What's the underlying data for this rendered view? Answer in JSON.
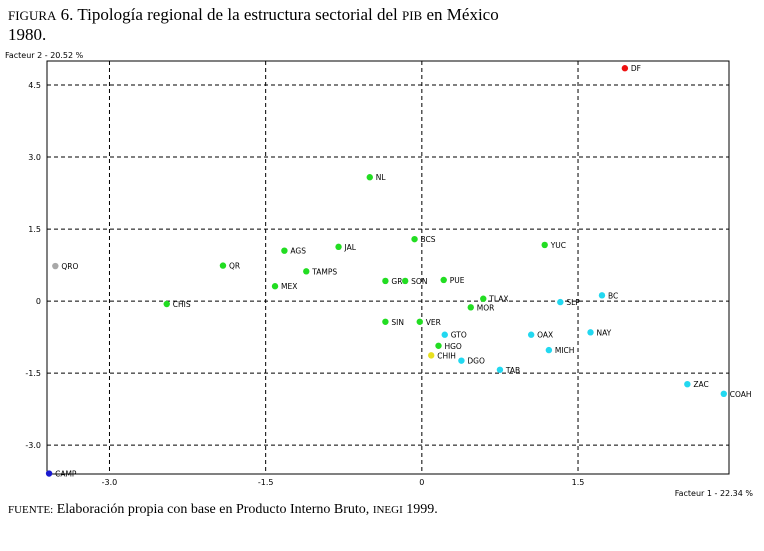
{
  "title": {
    "figure_label": "FIGURA",
    "figure_number": "6.",
    "text_part1": "Tipología regional de la estructura sectorial del",
    "acronym": "PIB",
    "text_part2": "en México",
    "line2": "1980."
  },
  "source": {
    "label": "FUENTE:",
    "text": "Elaboración propia con base en Producto Interno Bruto,",
    "org": "INEGI",
    "year": "1999."
  },
  "colors": {
    "green": "#22dd22",
    "cyan": "#22d8f0",
    "red": "#ee1111",
    "gray": "#a8a8a8",
    "blue": "#1a1ad0",
    "yellow": "#e8e020"
  },
  "chart_data": {
    "type": "scatter",
    "title": "Tipología regional de la estructura sectorial del PIB en México 1980.",
    "xlabel": "Facteur 1  -  22.34 %",
    "ylabel": "Facteur 2  -  20.52 %",
    "xlim": [
      -3.6,
      2.95
    ],
    "ylim": [
      -3.6,
      5.0
    ],
    "xticks": [
      {
        "value": -3.0,
        "label": "-3.0"
      },
      {
        "value": -1.5,
        "label": "-1.5"
      },
      {
        "value": 0,
        "label": "0"
      },
      {
        "value": 1.5,
        "label": "1.5"
      }
    ],
    "yticks": [
      {
        "value": 4.5,
        "label": "4.5"
      },
      {
        "value": 3.0,
        "label": "3.0"
      },
      {
        "value": 1.5,
        "label": "1.5"
      },
      {
        "value": 0,
        "label": "0"
      },
      {
        "value": -1.5,
        "label": "-1.5"
      },
      {
        "value": -3.0,
        "label": "-3.0"
      }
    ],
    "grid": true,
    "points": [
      {
        "label": "DF",
        "x": 1.95,
        "y": 4.85,
        "group": "red"
      },
      {
        "label": "NL",
        "x": -0.5,
        "y": 2.58,
        "group": "green"
      },
      {
        "label": "BCS",
        "x": -0.07,
        "y": 1.29,
        "group": "green"
      },
      {
        "label": "JAL",
        "x": -0.8,
        "y": 1.13,
        "group": "green"
      },
      {
        "label": "YUC",
        "x": 1.18,
        "y": 1.17,
        "group": "green"
      },
      {
        "label": "AGS",
        "x": -1.32,
        "y": 1.05,
        "group": "green"
      },
      {
        "label": "QRO",
        "x": -3.52,
        "y": 0.73,
        "group": "gray"
      },
      {
        "label": "QR",
        "x": -1.91,
        "y": 0.74,
        "group": "green"
      },
      {
        "label": "TAMPS",
        "x": -1.11,
        "y": 0.62,
        "group": "green"
      },
      {
        "label": "GRO",
        "x": -0.35,
        "y": 0.42,
        "group": "green"
      },
      {
        "label": "SON",
        "x": -0.16,
        "y": 0.42,
        "group": "green"
      },
      {
        "label": "PUE",
        "x": 0.21,
        "y": 0.44,
        "group": "green"
      },
      {
        "label": "MEX",
        "x": -1.41,
        "y": 0.31,
        "group": "green"
      },
      {
        "label": "BC",
        "x": 1.73,
        "y": 0.12,
        "group": "cyan"
      },
      {
        "label": "TLAX",
        "x": 0.59,
        "y": 0.05,
        "group": "green"
      },
      {
        "label": "SLP",
        "x": 1.33,
        "y": -0.02,
        "group": "cyan"
      },
      {
        "label": "CHIS",
        "x": -2.45,
        "y": -0.06,
        "group": "green"
      },
      {
        "label": "MOR",
        "x": 0.47,
        "y": -0.13,
        "group": "green"
      },
      {
        "label": "SIN",
        "x": -0.35,
        "y": -0.43,
        "group": "green"
      },
      {
        "label": "VER",
        "x": -0.02,
        "y": -0.43,
        "group": "green"
      },
      {
        "label": "GTO",
        "x": 0.22,
        "y": -0.7,
        "group": "cyan"
      },
      {
        "label": "OAX",
        "x": 1.05,
        "y": -0.7,
        "group": "cyan"
      },
      {
        "label": "NAY",
        "x": 1.62,
        "y": -0.65,
        "group": "cyan"
      },
      {
        "label": "HGO",
        "x": 0.16,
        "y": -0.93,
        "group": "green"
      },
      {
        "label": "MICH",
        "x": 1.22,
        "y": -1.02,
        "group": "cyan"
      },
      {
        "label": "CHIH",
        "x": 0.09,
        "y": -1.13,
        "group": "yellow"
      },
      {
        "label": "DGO",
        "x": 0.38,
        "y": -1.24,
        "group": "cyan"
      },
      {
        "label": "TAB",
        "x": 0.75,
        "y": -1.43,
        "group": "cyan"
      },
      {
        "label": "ZAC",
        "x": 2.55,
        "y": -1.73,
        "group": "cyan"
      },
      {
        "label": "COAH",
        "x": 2.9,
        "y": -1.93,
        "group": "cyan"
      },
      {
        "label": "CAMP",
        "x": -3.58,
        "y": -3.59,
        "group": "blue"
      }
    ]
  }
}
